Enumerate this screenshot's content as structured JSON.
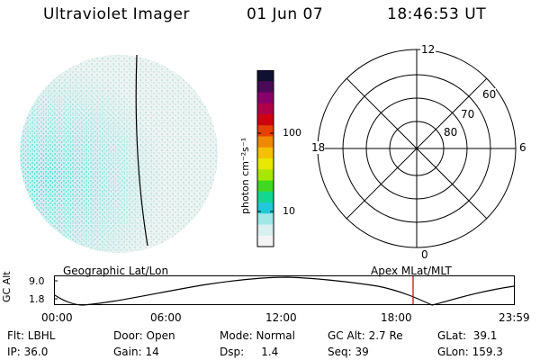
{
  "header": {
    "instrument": "Ultraviolet Imager",
    "date": "01 Jun 07",
    "time": "18:46:53 UT"
  },
  "colorbar": {
    "unit_label": "photon cm⁻²s⁻¹",
    "ticks": [
      "100",
      "10"
    ],
    "colors": [
      "#101030",
      "#4a0a58",
      "#8a006a",
      "#b00048",
      "#d00010",
      "#e84000",
      "#f08800",
      "#f4c000",
      "#e8e800",
      "#a8e800",
      "#40d820",
      "#10d890",
      "#20c8d8",
      "#a0e8e8",
      "#d8f0f0",
      "#f4f4f4"
    ]
  },
  "polar": {
    "labels": {
      "top": "12",
      "left": "18",
      "right": "6",
      "bottom": "0"
    },
    "rings": [
      "60",
      "70",
      "80"
    ]
  },
  "altitude_plot": {
    "geo_label": "Geographic Lat/Lon",
    "apex_label": "Apex MLat/MLT",
    "ylabel": "GC Alt",
    "yticks": [
      "9.0",
      "1.8"
    ],
    "xticks": [
      "00:00",
      "06:00",
      "12:00",
      "18:00",
      "23:59"
    ]
  },
  "info": {
    "filter": "Flt: LBHL",
    "ip": "IP: 36.0",
    "door": "Door: Open",
    "gain": "Gain: 14",
    "mode": "Mode: Normal",
    "dsp": "Dsp:     1.4",
    "gc_alt": "GC Alt: 2.7 Re",
    "seq": "Seq: 39",
    "glat": "GLat:  39.1",
    "glon": "GLon: 159.3"
  }
}
